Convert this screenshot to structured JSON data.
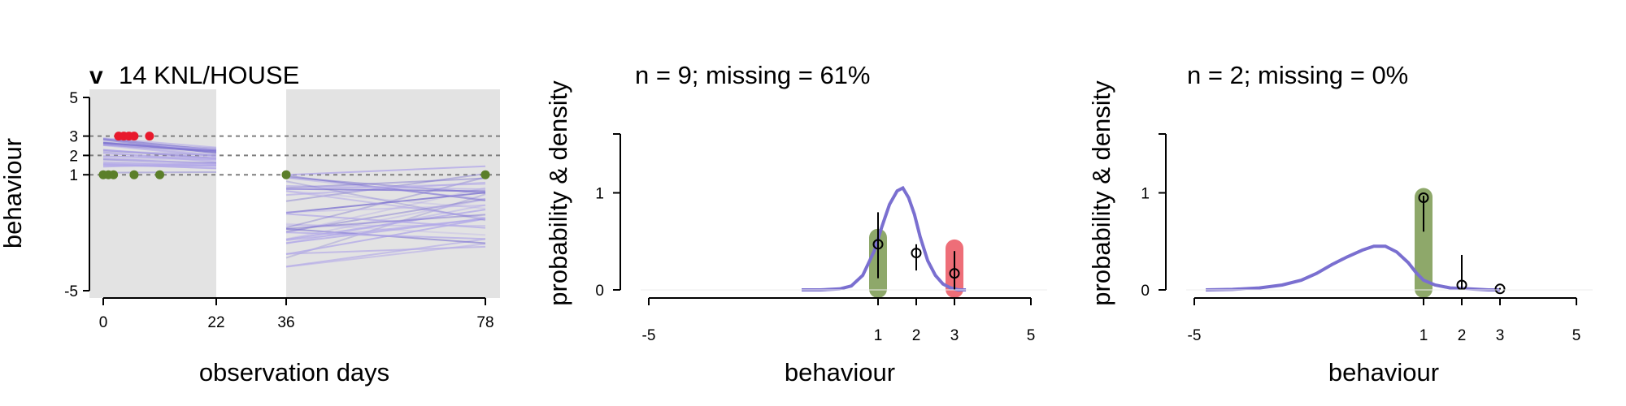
{
  "colors": {
    "band": "#e3e3e3",
    "line": "#7a6fd0",
    "line_light": "#b3a9e8",
    "red": "#e8192c",
    "green": "#5b7f2a",
    "green_bar": "#8ea86a",
    "red_bar": "#ee6e78",
    "grid": "#7f7f7f"
  },
  "chart_data": [
    {
      "type": "scatter",
      "panel_letter": "v",
      "title": "14 KNL/HOUSE",
      "xlabel": "observation days",
      "ylabel": "behaviour",
      "x_ticks": [
        "0",
        "22",
        "36",
        "78"
      ],
      "y_ticks": [
        "5",
        "3",
        "2",
        "1",
        "-5"
      ],
      "reference_lines": [
        3,
        2,
        1
      ],
      "shaded_ranges": [
        [
          -1,
          22
        ],
        [
          36,
          78
        ]
      ],
      "observations": [
        {
          "category": 3,
          "days": [
            3,
            4,
            5,
            6,
            9
          ]
        },
        {
          "category": 1,
          "days": [
            0,
            1,
            2,
            6,
            11,
            36,
            78
          ]
        }
      ],
      "trajectory_bundles": [
        {
          "x_range": [
            0,
            22
          ],
          "y_start_range": [
            1.1,
            2.9
          ],
          "y_end_range": [
            0.8,
            2.1
          ]
        },
        {
          "x_range": [
            36,
            78
          ],
          "y_start_range": [
            -3.8,
            2.0
          ],
          "y_end_range": [
            -3.2,
            3.1
          ]
        }
      ]
    },
    {
      "type": "line",
      "title": "n = 9; missing = 61%",
      "xlabel": "behaviour",
      "ylabel": "probability & density",
      "x_ticks": [
        "-5",
        "1",
        "2",
        "3",
        "5"
      ],
      "y_ticks": [
        "0",
        "1"
      ],
      "bars": [
        {
          "x": 1,
          "value": 0.63,
          "color": "green"
        },
        {
          "x": 3,
          "value": 0.52,
          "color": "red"
        }
      ],
      "points": [
        {
          "x": 1,
          "y": 0.47,
          "lo": 0.12,
          "hi": 0.8
        },
        {
          "x": 2,
          "y": 0.38,
          "lo": 0.2,
          "hi": 0.47
        },
        {
          "x": 3,
          "y": 0.17,
          "lo": 0.0,
          "hi": 0.4
        }
      ],
      "density": {
        "x": [
          -1,
          -0.5,
          0,
          0.3,
          0.6,
          0.9,
          1.1,
          1.3,
          1.5,
          1.65,
          1.8,
          1.95,
          2.1,
          2.3,
          2.5,
          2.7,
          2.9,
          3.1,
          3.3
        ],
        "y": [
          0.0,
          0.0,
          0.01,
          0.04,
          0.15,
          0.4,
          0.65,
          0.88,
          1.02,
          1.05,
          0.95,
          0.78,
          0.55,
          0.3,
          0.15,
          0.06,
          0.02,
          0.0,
          0.0
        ]
      }
    },
    {
      "type": "line",
      "title": "n = 2; missing = 0%",
      "xlabel": "behaviour",
      "ylabel": "probability & density",
      "x_ticks": [
        "-5",
        "1",
        "2",
        "3",
        "5"
      ],
      "y_ticks": [
        "0",
        "1"
      ],
      "bars": [
        {
          "x": 1,
          "value": 1.05,
          "color": "green"
        }
      ],
      "points": [
        {
          "x": 1,
          "y": 0.95,
          "lo": 0.6,
          "hi": 0.97
        },
        {
          "x": 2,
          "y": 0.05,
          "lo": 0.0,
          "hi": 0.36
        },
        {
          "x": 3,
          "y": 0.01,
          "lo": 0.0,
          "hi": 0.02
        }
      ],
      "density": {
        "x": [
          -4.7,
          -4,
          -3.3,
          -2.7,
          -2.2,
          -1.8,
          -1.4,
          -1.0,
          -0.6,
          -0.3,
          0,
          0.3,
          0.6,
          0.8,
          1.0,
          1.3,
          1.7,
          2.2,
          2.7,
          3.0
        ],
        "y": [
          0.0,
          0.005,
          0.02,
          0.05,
          0.1,
          0.17,
          0.26,
          0.34,
          0.41,
          0.45,
          0.45,
          0.39,
          0.28,
          0.18,
          0.1,
          0.05,
          0.02,
          0.01,
          0.0,
          0.0
        ]
      }
    }
  ]
}
